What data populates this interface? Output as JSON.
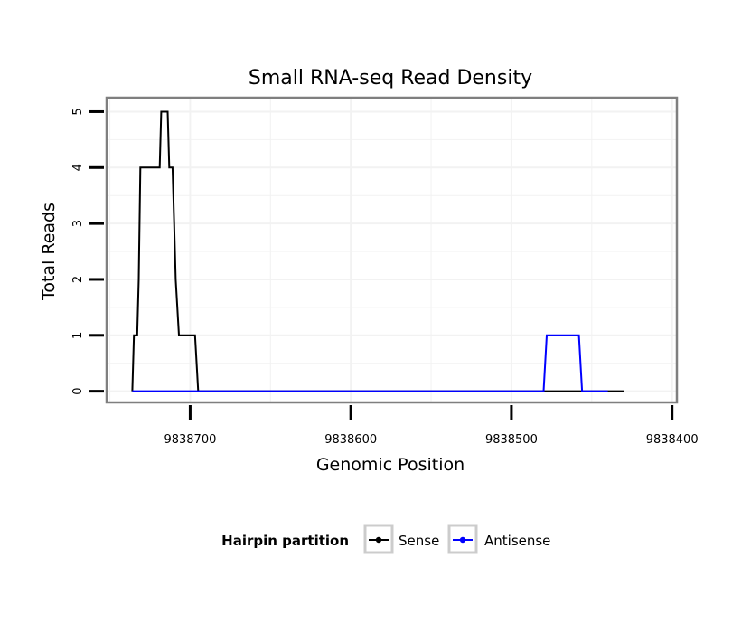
{
  "chart_data": {
    "type": "line",
    "title": "Small RNA-seq Read Density",
    "xlabel": "Genomic Position",
    "ylabel": "Total Reads",
    "x_reversed": true,
    "xlim": [
      9838752,
      9838397
    ],
    "ylim": [
      -0.2,
      5.25
    ],
    "x_ticks": [
      9838700,
      9838600,
      9838500,
      9838400
    ],
    "x_tick_labels": [
      "9838700",
      "9838600",
      "9838500",
      "9838400"
    ],
    "y_ticks": [
      0,
      1,
      2,
      3,
      4,
      5
    ],
    "y_tick_labels": [
      "0",
      "1",
      "2",
      "3",
      "4",
      "5"
    ],
    "grid": true,
    "legend": {
      "title": "Hairpin partition",
      "position": "bottom"
    },
    "series": [
      {
        "name": "Sense",
        "color": "#000000",
        "x": [
          9838736,
          9838735,
          9838733,
          9838732,
          9838731,
          9838729,
          9838719,
          9838718,
          9838716,
          9838714,
          9838713,
          9838711,
          9838710,
          9838709,
          9838707,
          9838704,
          9838701,
          9838699,
          9838697,
          9838695,
          9838430
        ],
        "y": [
          0,
          1,
          1,
          2,
          4,
          4,
          4,
          5,
          5,
          5,
          4,
          4,
          3,
          2,
          1,
          1,
          1,
          1,
          1,
          0,
          0
        ]
      },
      {
        "name": "Antisense",
        "color": "#0000ff",
        "x": [
          9838736,
          9838696,
          9838480,
          9838478,
          9838458,
          9838456,
          9838440
        ],
        "y": [
          0,
          0,
          0,
          1,
          1,
          0,
          0
        ]
      }
    ]
  }
}
